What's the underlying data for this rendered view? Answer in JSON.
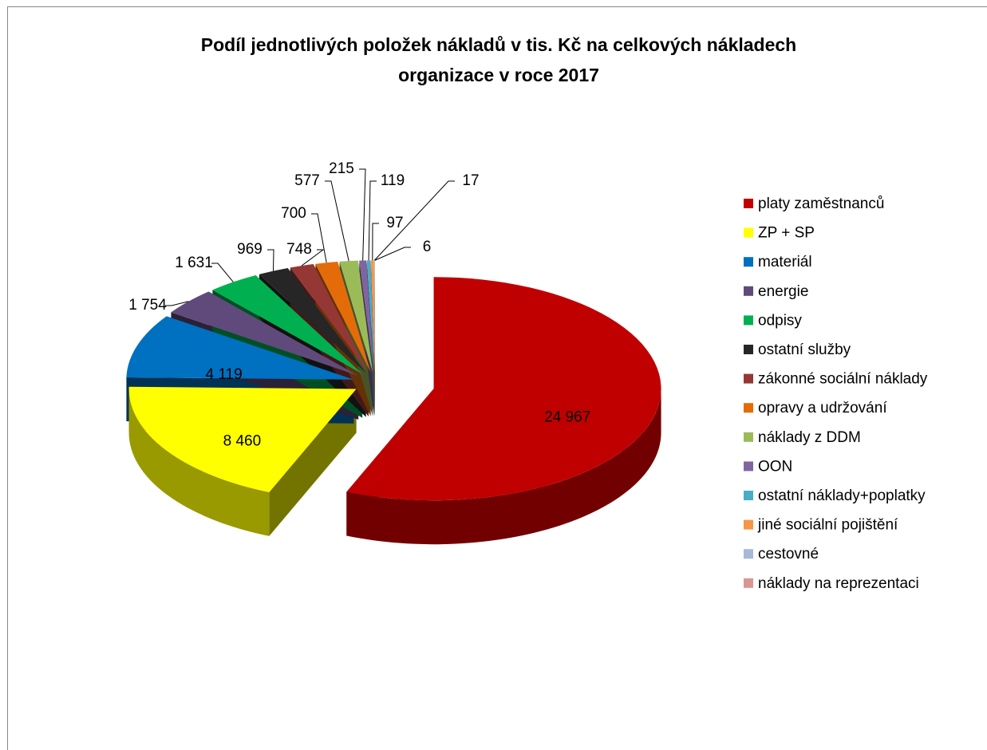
{
  "chart_data": {
    "type": "pie3d",
    "title": [
      "Podíl jednotlivých položek nákladů v tis. Kč na celkových nákladech",
      "organizace  v roce 2017"
    ],
    "categories": [
      "platy zaměstnanců",
      "ZP + SP",
      "materiál",
      "energie",
      "odpisy",
      "ostatní služby",
      "zákonné sociální náklady",
      "opravy a udržování",
      "náklady z DDM",
      "OON",
      "ostatní náklady+poplatky",
      "jiné sociální pojištění",
      "cestovné",
      "náklady na reprezentaci"
    ],
    "values": [
      24967,
      8460,
      4119,
      1754,
      1631,
      969,
      748,
      700,
      577,
      215,
      119,
      97,
      17,
      6
    ],
    "value_labels": [
      "24 967",
      "8 460",
      "4 119",
      "1 754",
      "1 631",
      "969",
      "748",
      "700",
      "577",
      "215",
      "119",
      "97",
      "17",
      "6"
    ],
    "colors": [
      "#c00000",
      "#ffff00",
      "#0070c0",
      "#604a7b",
      "#00b050",
      "#262626",
      "#953735",
      "#e36c09",
      "#9bbb59",
      "#8064a2",
      "#4bacc6",
      "#f79646",
      "#a6b9d7",
      "#d99694"
    ],
    "legend": "right"
  }
}
